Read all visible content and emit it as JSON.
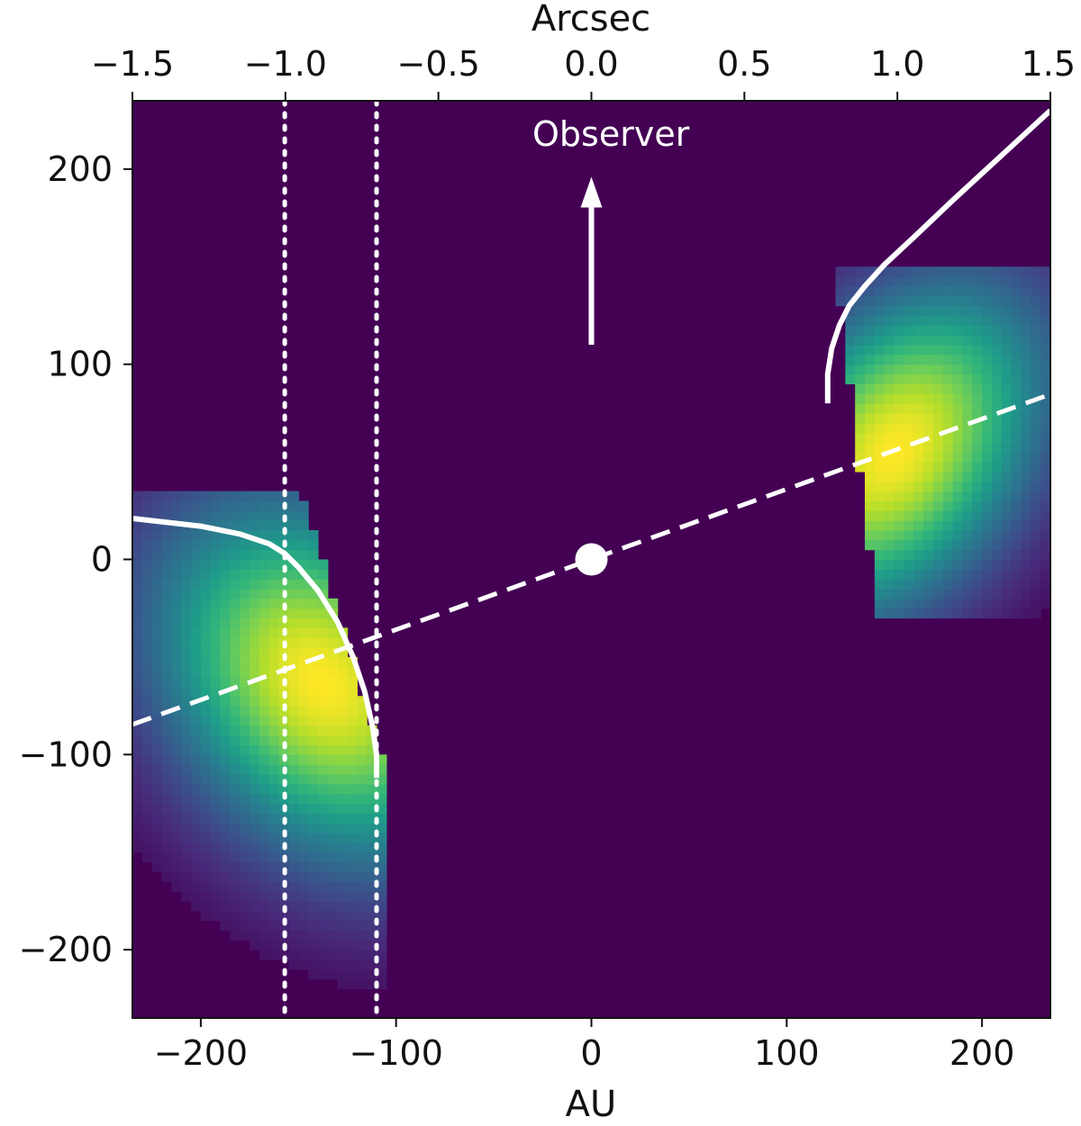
{
  "chart_data": {
    "type": "heatmap",
    "title": "",
    "xlabel": "AU",
    "ylabel": "",
    "x2label": "Arcsec",
    "xlim": [
      -235,
      235
    ],
    "ylim": [
      -235,
      235
    ],
    "x2lim": [
      -1.5,
      1.5
    ],
    "x_ticks": [
      -200,
      -100,
      0,
      100,
      200
    ],
    "x_tick_labels": [
      "−200",
      "−100",
      "0",
      "100",
      "200"
    ],
    "y_ticks": [
      -200,
      -100,
      0,
      100,
      200
    ],
    "y_tick_labels": [
      "−200",
      "−100",
      "0",
      "100",
      "200"
    ],
    "x2_ticks": [
      -1.5,
      -1.0,
      -0.5,
      0.0,
      0.5,
      1.0,
      1.5
    ],
    "x2_tick_labels": [
      "−1.5",
      "−1.0",
      "−0.5",
      "0.0",
      "0.5",
      "1.0",
      "1.5"
    ],
    "grid": false,
    "background_color": "#440154",
    "colormap": "viridis",
    "blobs": [
      {
        "side": "left",
        "peak": [
          -138,
          -63
        ],
        "extent_x": [
          -235,
          -105
        ],
        "extent_y": [
          -235,
          35
        ]
      },
      {
        "side": "right",
        "peak": [
          155,
          55
        ],
        "extent_x": [
          115,
          235
        ],
        "extent_y": [
          -30,
          150
        ]
      }
    ],
    "star": {
      "x": 0,
      "y": 0
    },
    "dashed_line": {
      "slope": 0.36,
      "through": [
        0,
        0
      ]
    },
    "dotted_lines_x": [
      -157,
      -110
    ],
    "curves": [
      {
        "name": "",
        "points": [
          [
            -235,
            21
          ],
          [
            -200,
            17
          ],
          [
            -180,
            13
          ],
          [
            -165,
            8
          ],
          [
            -157,
            3
          ],
          [
            -150,
            -4
          ],
          [
            -140,
            -16
          ],
          [
            -130,
            -32
          ],
          [
            -122,
            -50
          ],
          [
            -116,
            -68
          ],
          [
            -112,
            -86
          ],
          [
            -110,
            -100
          ],
          [
            -110,
            -112
          ]
        ]
      },
      {
        "name": "",
        "points": [
          [
            235,
            230
          ],
          [
            210,
            207
          ],
          [
            185,
            184
          ],
          [
            165,
            165
          ],
          [
            150,
            151
          ],
          [
            140,
            140
          ],
          [
            132,
            130
          ],
          [
            127,
            120
          ],
          [
            123,
            108
          ],
          [
            121,
            95
          ],
          [
            121,
            80
          ]
        ]
      }
    ],
    "annotations": [
      {
        "text": "Observer",
        "x": 10,
        "y": 212
      }
    ],
    "arrow": {
      "from": [
        0,
        110
      ],
      "to": [
        0,
        196
      ]
    }
  }
}
